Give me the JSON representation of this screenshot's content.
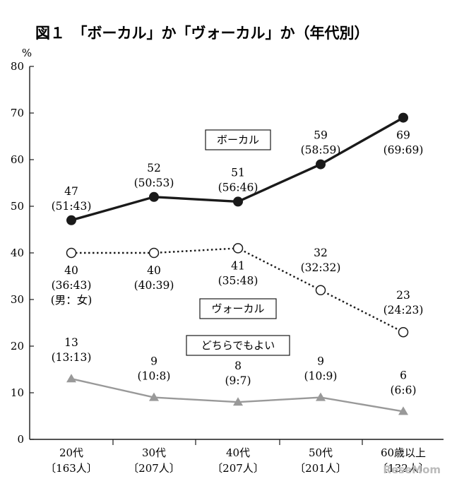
{
  "title": "図１　「ボーカル」か「ヴォーカル」か（年代別）",
  "watermark": "ReseMom",
  "chart_data": {
    "type": "line",
    "y_unit": "%",
    "ylim": [
      0,
      80
    ],
    "yticks": [
      0,
      10,
      20,
      30,
      40,
      50,
      60,
      70,
      80
    ],
    "categories": [
      "20代",
      "30代",
      "40代",
      "50代",
      "60歳以上"
    ],
    "category_counts": [
      "〔163人〕",
      "〔207人〕",
      "〔207人〕",
      "〔201人〕",
      "〔132人〕"
    ],
    "grid": false,
    "series": [
      {
        "name": "ボーカル",
        "values": [
          47,
          52,
          51,
          59,
          69
        ],
        "ratios": [
          "(51:43)",
          "(50:53)",
          "(56:46)",
          "(58:59)",
          "(69:69)"
        ],
        "style": "solid",
        "marker": "filled-circle",
        "color": "#1a1a1a"
      },
      {
        "name": "ヴォーカル",
        "values": [
          40,
          40,
          41,
          32,
          23
        ],
        "ratios": [
          "(36:43)",
          "(40:39)",
          "(35:48)",
          "(32:32)",
          "(24:23)"
        ],
        "style": "dotted",
        "marker": "open-circle",
        "color": "#1a1a1a"
      },
      {
        "name": "どちらでもよい",
        "values": [
          13,
          9,
          8,
          9,
          6
        ],
        "ratios": [
          "(13:13)",
          "(10:8)",
          "(9:7)",
          "(10:9)",
          "(6:6)"
        ],
        "style": "solid",
        "marker": "filled-triangle",
        "color": "#999999"
      }
    ],
    "annotation": "(男：女)"
  }
}
